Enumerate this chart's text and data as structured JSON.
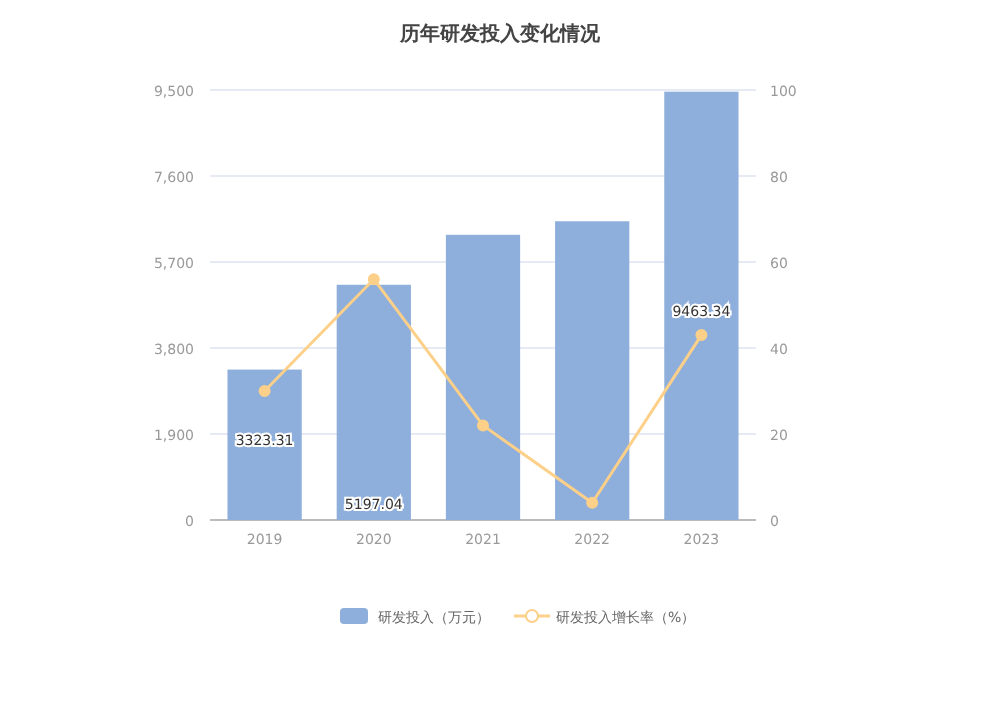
{
  "chart_data": {
    "type": "bar",
    "title": "历年研发投入变化情况",
    "categories": [
      "2019",
      "2020",
      "2021",
      "2022",
      "2023"
    ],
    "series": [
      {
        "name": "研发投入（万元）",
        "color": "#8eaedb",
        "values": [
          3323.31,
          5197.04,
          6300,
          6600,
          9463.34
        ],
        "value_labels": [
          "3323.31",
          "5197.04",
          null,
          null,
          "9463.34"
        ]
      },
      {
        "name": "研发投入增长率（%）",
        "type": "line",
        "axis": "y2",
        "color": "#fdd08a",
        "marker": "circle",
        "values": [
          30,
          56,
          22,
          4,
          43
        ]
      }
    ],
    "ylim": [
      0,
      9500
    ],
    "yticks": [
      {
        "value": 0,
        "label": "0"
      },
      {
        "value": 1900,
        "label": "1,900"
      },
      {
        "value": 3800,
        "label": "3,800"
      },
      {
        "value": 5700,
        "label": "5,700"
      },
      {
        "value": 7600,
        "label": "7,600"
      },
      {
        "value": 9500,
        "label": "9,500"
      }
    ],
    "y2lim": [
      0,
      100
    ],
    "y2ticks": [
      0,
      20,
      40,
      60,
      80,
      100
    ],
    "grid": "y",
    "legend": "bottom"
  }
}
